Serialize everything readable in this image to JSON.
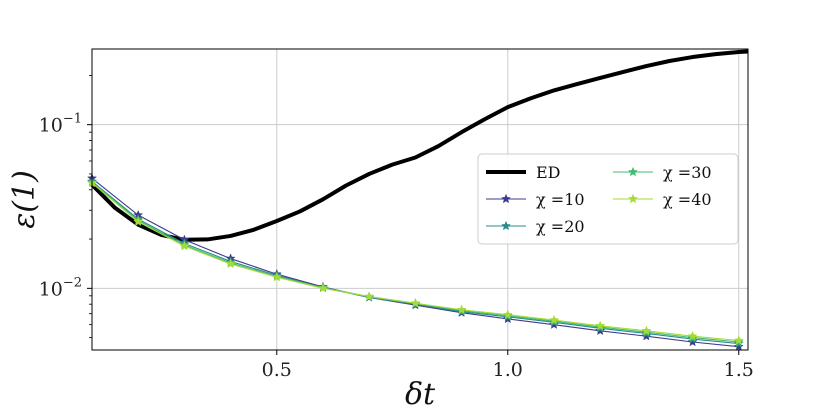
{
  "chart_data": {
    "type": "line",
    "xlabel": "δt",
    "ylabel": "ε(1)",
    "xscale": "linear",
    "yscale": "log",
    "xlim": [
      0.1,
      1.52
    ],
    "ylim": [
      0.0042,
      0.29
    ],
    "grid": true,
    "legend_position": "center-right",
    "x_ticks": [
      {
        "value": 0.5,
        "label": "0.5"
      },
      {
        "value": 1.0,
        "label": "1.0"
      },
      {
        "value": 1.5,
        "label": "1.5"
      }
    ],
    "y_ticks": [
      {
        "value": 0.1,
        "base": "10",
        "exp": "−1"
      },
      {
        "value": 0.01,
        "base": "10",
        "exp": "−2"
      }
    ],
    "series": [
      {
        "name": "ED",
        "color": "#000000",
        "style": "thick-line",
        "x": [
          0.1,
          0.15,
          0.2,
          0.25,
          0.3,
          0.35,
          0.4,
          0.45,
          0.5,
          0.55,
          0.6,
          0.65,
          0.7,
          0.75,
          0.8,
          0.85,
          0.9,
          0.95,
          1.0,
          1.05,
          1.1,
          1.15,
          1.2,
          1.25,
          1.3,
          1.35,
          1.4,
          1.45,
          1.5,
          1.52
        ],
        "y": [
          0.043,
          0.031,
          0.0245,
          0.0212,
          0.0198,
          0.0199,
          0.0209,
          0.0228,
          0.0258,
          0.0295,
          0.035,
          0.0425,
          0.05,
          0.057,
          0.063,
          0.074,
          0.09,
          0.108,
          0.128,
          0.145,
          0.162,
          0.177,
          0.193,
          0.21,
          0.228,
          0.245,
          0.259,
          0.27,
          0.278,
          0.28
        ]
      },
      {
        "name": "χ =10",
        "color": "#3e3b8c",
        "style": "line-star",
        "x": [
          0.1,
          0.2,
          0.3,
          0.4,
          0.5,
          0.6,
          0.7,
          0.8,
          0.9,
          1.0,
          1.1,
          1.2,
          1.3,
          1.4,
          1.5
        ],
        "y": [
          0.047,
          0.028,
          0.0198,
          0.0152,
          0.0122,
          0.0102,
          0.0088,
          0.0079,
          0.0071,
          0.0065,
          0.006,
          0.0055,
          0.0051,
          0.0047,
          0.0044
        ]
      },
      {
        "name": "χ =20",
        "color": "#2a8c8a",
        "style": "line-star",
        "x": [
          0.1,
          0.2,
          0.3,
          0.4,
          0.5,
          0.6,
          0.7,
          0.8,
          0.9,
          1.0,
          1.1,
          1.2,
          1.3,
          1.4,
          1.5
        ],
        "y": [
          0.045,
          0.0265,
          0.0188,
          0.0146,
          0.012,
          0.0101,
          0.0088,
          0.008,
          0.0072,
          0.0067,
          0.0062,
          0.0057,
          0.0053,
          0.0049,
          0.0046
        ]
      },
      {
        "name": "χ =30",
        "color": "#3fbc73",
        "style": "line-star",
        "x": [
          0.1,
          0.2,
          0.3,
          0.4,
          0.5,
          0.6,
          0.7,
          0.8,
          0.9,
          1.0,
          1.1,
          1.2,
          1.3,
          1.4,
          1.5
        ],
        "y": [
          0.0445,
          0.026,
          0.0184,
          0.0143,
          0.0118,
          0.0101,
          0.0089,
          0.0081,
          0.0073,
          0.0068,
          0.0063,
          0.0058,
          0.0054,
          0.005,
          0.0047
        ]
      },
      {
        "name": "χ =40",
        "color": "#a5db36",
        "style": "line-star",
        "x": [
          0.1,
          0.2,
          0.3,
          0.4,
          0.5,
          0.6,
          0.7,
          0.8,
          0.9,
          1.0,
          1.1,
          1.2,
          1.3,
          1.4,
          1.5
        ],
        "y": [
          0.044,
          0.0255,
          0.0181,
          0.0141,
          0.0117,
          0.01,
          0.0089,
          0.0081,
          0.0074,
          0.0069,
          0.0064,
          0.0059,
          0.0055,
          0.0051,
          0.0048
        ]
      }
    ]
  }
}
